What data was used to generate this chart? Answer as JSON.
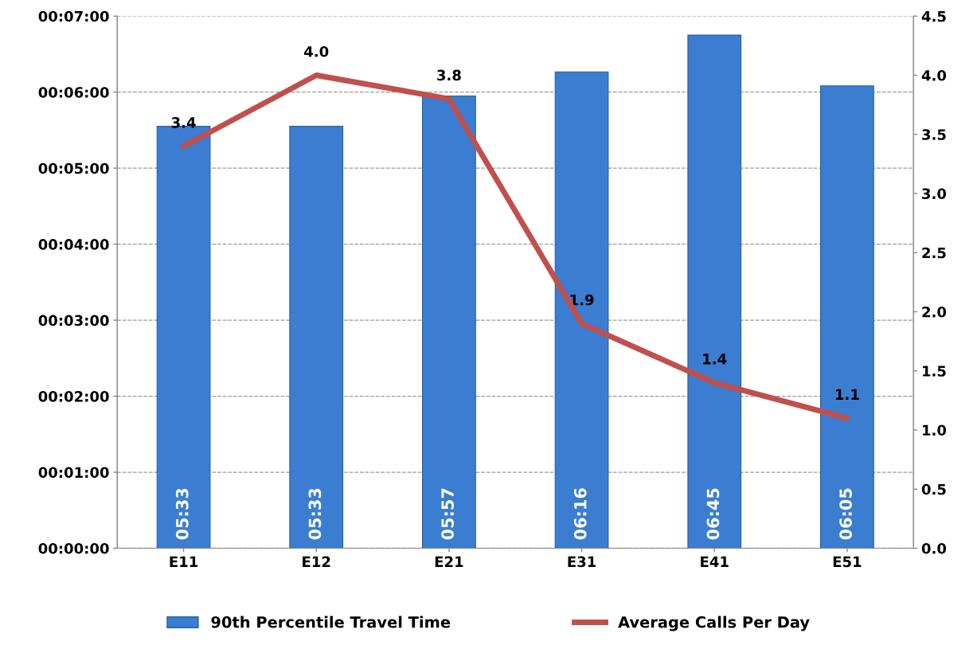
{
  "chart_data": {
    "type": "bar",
    "categories": [
      "E11",
      "E12",
      "E21",
      "E31",
      "E41",
      "E51"
    ],
    "series": [
      {
        "name": "90th Percentile Travel Time",
        "color": "#3b7dd0",
        "values": [
          333,
          333,
          357,
          376,
          405,
          365
        ],
        "value_labels": [
          "05:33",
          "05:33",
          "05:57",
          "06:16",
          "06:45",
          "06:05"
        ]
      },
      {
        "name": "Average Calls Per Day",
        "type": "line",
        "axis": "y2",
        "color": "#c0504d",
        "values": [
          3.4,
          4.0,
          3.8,
          1.9,
          1.4,
          1.1
        ],
        "value_labels": [
          "3.4",
          "4.0",
          "3.8",
          "1.9",
          "1.4",
          "1.1"
        ]
      }
    ],
    "ylim": [
      0,
      420
    ],
    "yticks": [
      {
        "value": 0,
        "label": "00:00:00"
      },
      {
        "value": 60,
        "label": "00:01:00"
      },
      {
        "value": 120,
        "label": "00:02:00"
      },
      {
        "value": 180,
        "label": "00:03:00"
      },
      {
        "value": 240,
        "label": "00:04:00"
      },
      {
        "value": 300,
        "label": "00:05:00"
      },
      {
        "value": 360,
        "label": "00:06:00"
      },
      {
        "value": 420,
        "label": "00:07:00"
      }
    ],
    "y2lim": [
      0,
      4.5
    ],
    "y2ticks": [
      {
        "value": 0,
        "label": "0.0"
      },
      0.5,
      {
        "value": 1,
        "label": "1.0"
      },
      1.5,
      {
        "value": 2,
        "label": "2.0"
      },
      2.5,
      {
        "value": 3,
        "label": "3.0"
      },
      3.5,
      {
        "value": 4,
        "label": "4.0"
      },
      4.5
    ],
    "grid": "y",
    "legend": "bottom",
    "marker": "none",
    "line_style": "solid"
  }
}
